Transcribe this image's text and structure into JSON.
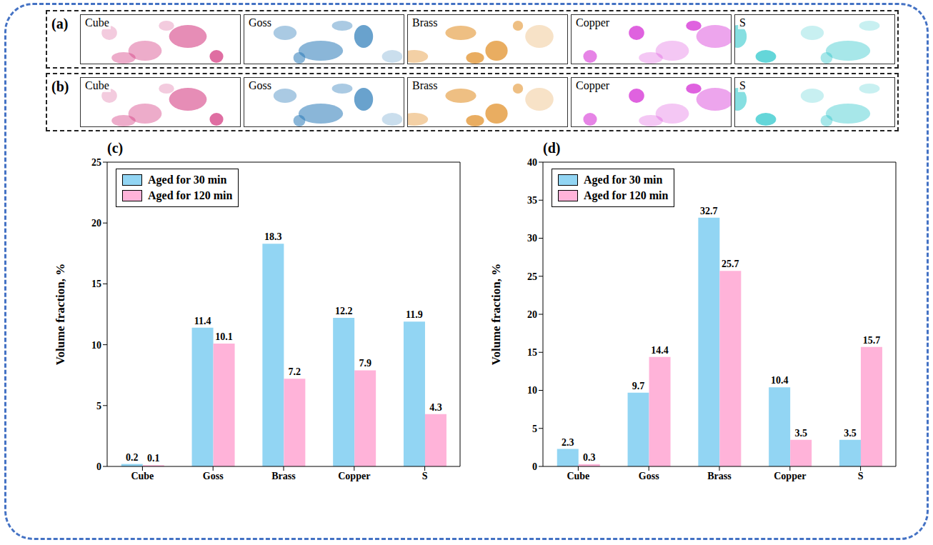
{
  "maps": [
    {
      "label": "(a)",
      "components": [
        {
          "name": "Cube",
          "color": "#d1307a"
        },
        {
          "name": "Goss",
          "color": "#2a7ab8"
        },
        {
          "name": "Brass",
          "color": "#e08a1e"
        },
        {
          "name": "Copper",
          "color": "#d21fd2"
        },
        {
          "name": "S",
          "color": "#22c4c9"
        }
      ]
    },
    {
      "label": "(b)",
      "components": [
        {
          "name": "Cube",
          "color": "#d1307a"
        },
        {
          "name": "Goss",
          "color": "#2a7ab8"
        },
        {
          "name": "Brass",
          "color": "#e08a1e"
        },
        {
          "name": "Copper",
          "color": "#d21fd2"
        },
        {
          "name": "S",
          "color": "#22c4c9"
        }
      ]
    }
  ],
  "chart_data": [
    {
      "type": "bar",
      "label": "(c)",
      "y_label": "Volume fraction, %",
      "categories": [
        "Cube",
        "Goss",
        "Brass",
        "Copper",
        "S"
      ],
      "series": [
        {
          "name": "Aged for 30 min",
          "color": "#92d5f3",
          "values": [
            0.2,
            11.4,
            18.3,
            12.2,
            11.9
          ]
        },
        {
          "name": "Aged for 120 min",
          "color": "#ffb3d9",
          "values": [
            0.1,
            10.1,
            7.2,
            7.9,
            4.3
          ]
        }
      ],
      "ylim": [
        0,
        25
      ],
      "yticks": [
        0,
        5,
        10,
        15,
        20,
        25
      ],
      "data_labels": true,
      "legend": "upper left"
    },
    {
      "type": "bar",
      "label": "(d)",
      "y_label": "Volume fraction, %",
      "categories": [
        "Cube",
        "Goss",
        "Brass",
        "Copper",
        "S"
      ],
      "series": [
        {
          "name": "Aged for 30 min",
          "color": "#92d5f3",
          "values": [
            2.3,
            9.7,
            32.7,
            10.4,
            3.5
          ]
        },
        {
          "name": "Aged for 120 min",
          "color": "#ffb3d9",
          "values": [
            0.3,
            14.4,
            25.7,
            3.5,
            15.7
          ]
        }
      ],
      "ylim": [
        0,
        40
      ],
      "yticks": [
        0,
        5,
        10,
        15,
        20,
        25,
        30,
        35,
        40
      ],
      "data_labels": true,
      "legend": "upper left"
    }
  ]
}
